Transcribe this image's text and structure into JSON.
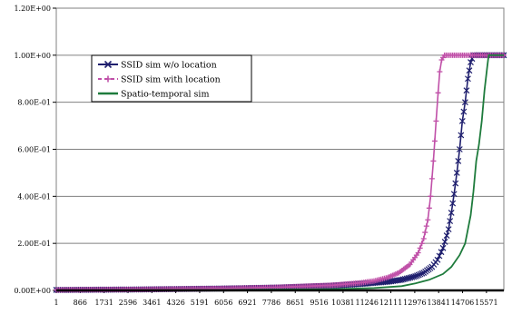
{
  "chart_data": {
    "type": "line",
    "title": "",
    "xlabel": "",
    "ylabel": "",
    "ylim": [
      0,
      1.2
    ],
    "grid": "horizontal",
    "legend_position": "upper-left",
    "x_tick_labels": [
      "1",
      "866",
      "1731",
      "2596",
      "3461",
      "4326",
      "5191",
      "6056",
      "6921",
      "7786",
      "8651",
      "9516",
      "10381",
      "11246",
      "12111",
      "12976",
      "13841",
      "14706",
      "15571"
    ],
    "y_tick_labels": [
      "0.00E+00",
      "2.00E-01",
      "4.00E-01",
      "6.00E-01",
      "8.00E-01",
      "1.00E+00",
      "1.20E+00"
    ],
    "y_tick_values": [
      0,
      0.2,
      0.4,
      0.6,
      0.8,
      1.0,
      1.2
    ],
    "x_range": [
      1,
      16200
    ],
    "series": [
      {
        "name": "SSID sim w/o location",
        "color": "#1f1f6e",
        "marker": "x",
        "x": [
          1,
          3000,
          6000,
          8000,
          10000,
          11000,
          12000,
          12500,
          13000,
          13300,
          13600,
          13800,
          14000,
          14200,
          14300,
          14400,
          14500,
          14600,
          14700,
          14800,
          14900,
          15000,
          15100,
          16200
        ],
        "y": [
          0.002,
          0.004,
          0.008,
          0.012,
          0.02,
          0.027,
          0.037,
          0.045,
          0.06,
          0.075,
          0.1,
          0.13,
          0.18,
          0.26,
          0.33,
          0.41,
          0.5,
          0.6,
          0.72,
          0.8,
          0.9,
          0.97,
          1.0,
          1.0
        ]
      },
      {
        "name": "SSID sim with location",
        "color": "#c050a8",
        "marker": "+",
        "x": [
          1,
          3000,
          6000,
          8000,
          10000,
          11000,
          11500,
          12000,
          12400,
          12800,
          13100,
          13300,
          13450,
          13550,
          13650,
          13750,
          13820,
          13880,
          13950,
          14050,
          16200
        ],
        "y": [
          0.002,
          0.004,
          0.008,
          0.013,
          0.022,
          0.032,
          0.04,
          0.055,
          0.075,
          0.11,
          0.16,
          0.22,
          0.3,
          0.4,
          0.55,
          0.72,
          0.84,
          0.93,
          0.98,
          1.0,
          1.0
        ]
      },
      {
        "name": "Spatio-temporal sim",
        "color": "#1e7b3c",
        "marker": "none",
        "x": [
          1,
          6000,
          10000,
          11500,
          12500,
          13000,
          13500,
          14000,
          14300,
          14600,
          14800,
          15000,
          15100,
          15200,
          15300,
          15400,
          15500,
          15600,
          15650,
          16200
        ],
        "y": [
          0.0,
          0.002,
          0.005,
          0.01,
          0.018,
          0.03,
          0.045,
          0.07,
          0.1,
          0.15,
          0.2,
          0.32,
          0.42,
          0.55,
          0.62,
          0.72,
          0.85,
          0.95,
          1.0,
          1.0
        ]
      }
    ]
  }
}
